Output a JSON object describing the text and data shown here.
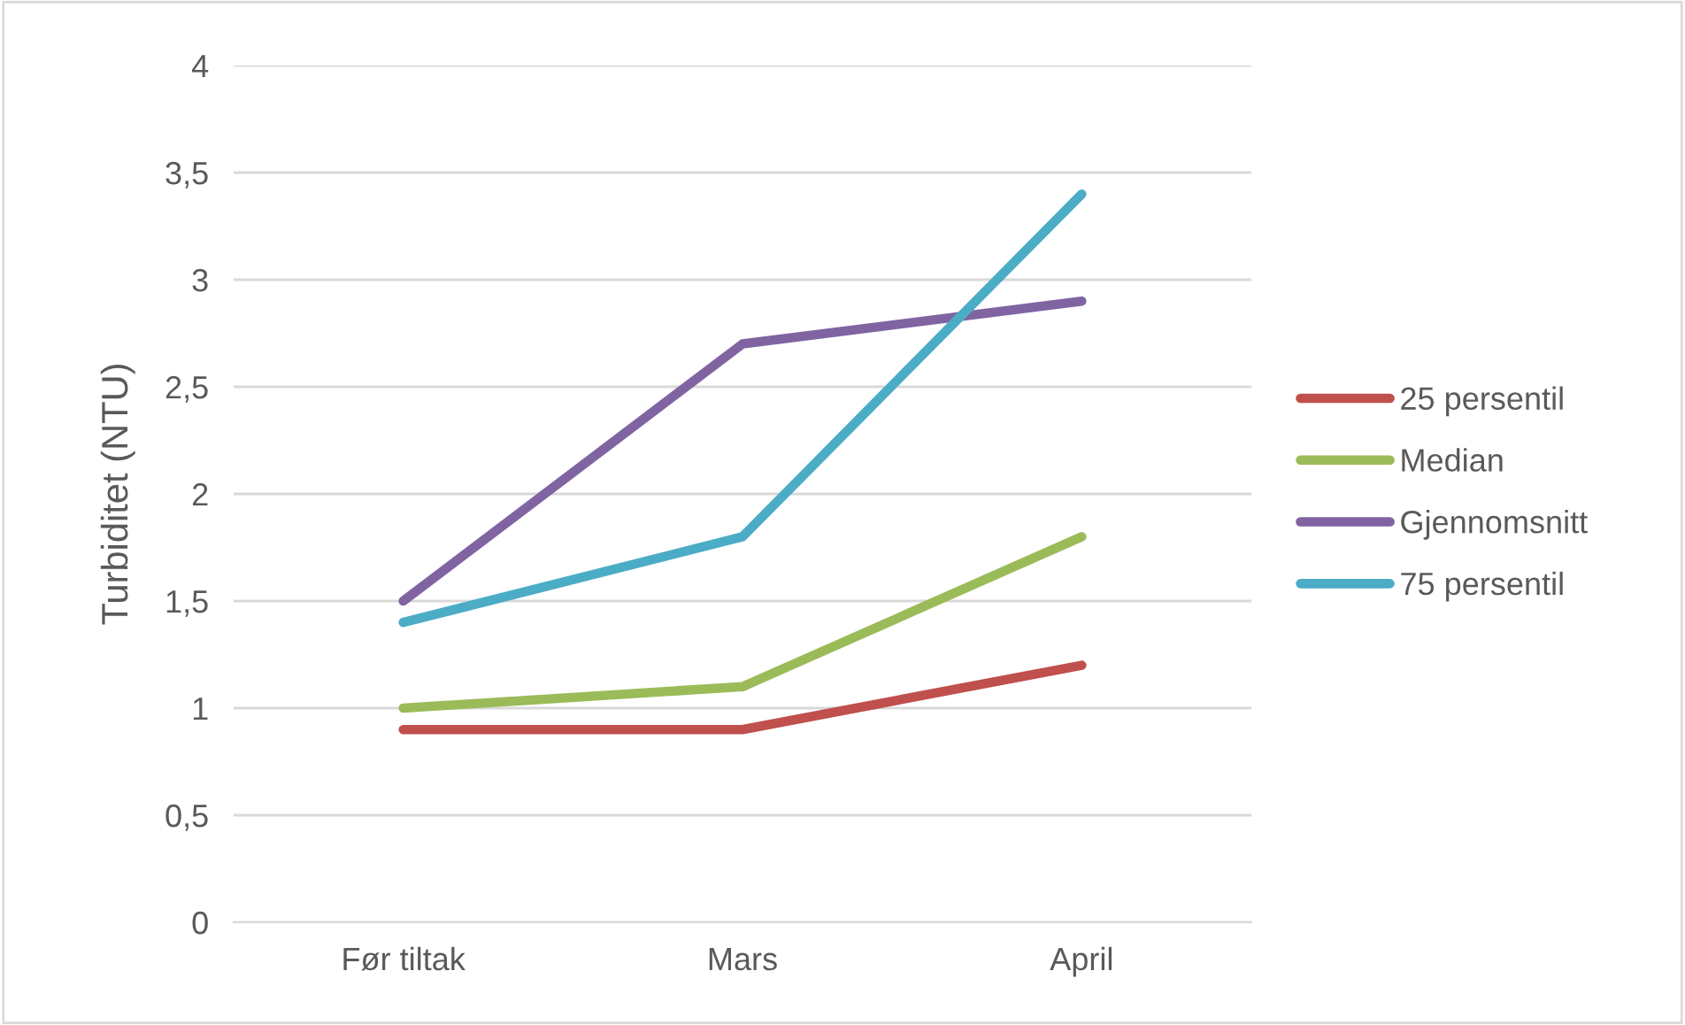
{
  "chart_data": {
    "type": "line",
    "ylabel": "Turbiditet (NTU)",
    "categories": [
      "Før tiltak",
      "Mars",
      "April"
    ],
    "series": [
      {
        "name": "25 persentil",
        "color": "#c0504d",
        "values": [
          0.9,
          0.9,
          1.2
        ]
      },
      {
        "name": "Median",
        "color": "#9bbb59",
        "values": [
          1.0,
          1.1,
          1.8
        ]
      },
      {
        "name": "Gjennomsnitt",
        "color": "#8064a2",
        "values": [
          1.5,
          2.7,
          2.9
        ]
      },
      {
        "name": "75 persentil",
        "color": "#4bacc6",
        "values": [
          1.4,
          1.8,
          3.4
        ]
      }
    ],
    "ylim": [
      0,
      4
    ],
    "yticks": [
      0,
      {
        "value": 0.5,
        "label": "0,5"
      },
      1,
      {
        "value": 1.5,
        "label": "1,5"
      },
      2,
      {
        "value": 2.5,
        "label": "2,5"
      },
      3,
      {
        "value": 3.5,
        "label": "3,5"
      },
      4
    ],
    "grid": "y",
    "legend": "right",
    "marker": "none",
    "line_style": "solid"
  }
}
